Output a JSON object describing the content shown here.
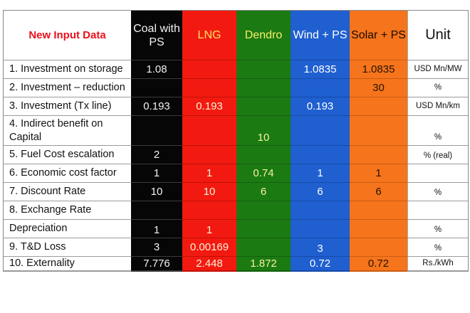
{
  "header": {
    "title": "New Input Data",
    "coal": "Coal with PS",
    "lng": "LNG",
    "dendro": "Dendro",
    "wind": "Wind + PS",
    "solar": "Solar + PS",
    "unit": "Unit"
  },
  "rows": [
    {
      "label": "1. Investment on storage",
      "coal": "1.08",
      "lng": "",
      "dendro": "",
      "wind": "1.0835",
      "solar": "1.0835",
      "unit": "USD Mn/MW"
    },
    {
      "label": "2. Investment – reduction",
      "coal": "",
      "lng": "",
      "dendro": "",
      "wind": "",
      "solar": "30",
      "unit": "%"
    },
    {
      "label": "3. Investment (Tx line)",
      "coal": "0.193",
      "lng": "0.193",
      "dendro": "",
      "wind": "0.193",
      "solar": "",
      "unit": "USD Mn/km"
    },
    {
      "label": "4. Indirect benefit on Capital",
      "coal": "",
      "lng": "",
      "dendro": "10",
      "wind": "",
      "solar": "",
      "unit": "%"
    },
    {
      "label": "5. Fuel Cost escalation",
      "coal": "2",
      "lng": "",
      "dendro": "",
      "wind": "",
      "solar": "",
      "unit": "% (real)"
    },
    {
      "label": "6. Economic cost factor",
      "coal": "1",
      "lng": "1",
      "dendro": "0.74",
      "wind": "1",
      "solar": "1",
      "unit": ""
    },
    {
      "label": "7. Discount Rate",
      "coal": "10",
      "lng": "10",
      "dendro": "6",
      "wind": "6",
      "solar": "6",
      "unit": "%"
    },
    {
      "label": "8. Exchange Rate",
      "coal": "",
      "lng": "",
      "dendro": "",
      "wind": "",
      "solar": "",
      "unit": ""
    },
    {
      "label": "Depreciation",
      "coal": "1",
      "lng": "1",
      "dendro": "",
      "wind": "",
      "solar": "",
      "unit": "%"
    },
    {
      "label": "9. T&D Loss",
      "coal": "3",
      "lng": "0.00169",
      "dendro": "",
      "wind": "3",
      "solar": "",
      "unit": "%"
    },
    {
      "label": "10. Externality",
      "coal": "7.776",
      "lng": "2.448",
      "dendro": "1.872",
      "wind": "0.72",
      "solar": "0.72",
      "unit": "Rs./kWh"
    }
  ],
  "colors": {
    "coal": "#060606",
    "lng": "#f21a10",
    "dendro": "#1c7a12",
    "wind": "#1f5fd0",
    "solar": "#f5741c",
    "title": "#e8101a"
  }
}
